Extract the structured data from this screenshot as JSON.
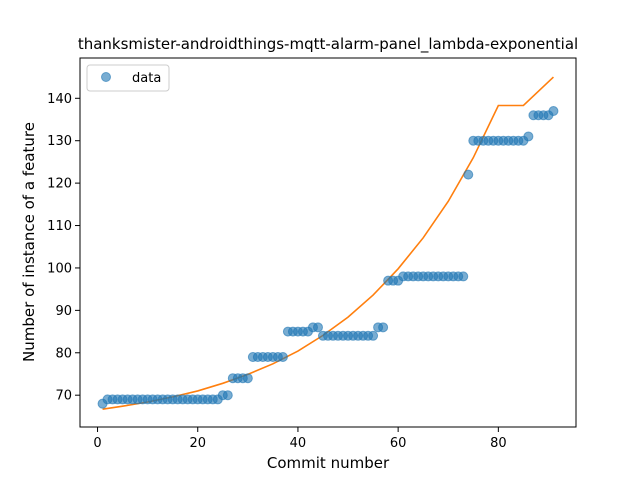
{
  "chart_data": {
    "type": "scatter",
    "title": "thanksmister-androidthings-mqtt-alarm-panel_lambda-exponential",
    "xlabel": "Commit number",
    "ylabel": "Number of instance of a feature",
    "xlim": [
      -3.5,
      95.5
    ],
    "ylim": [
      62.5,
      149.5
    ],
    "xticks": [
      0,
      20,
      40,
      60,
      80
    ],
    "yticks": [
      70,
      80,
      90,
      100,
      110,
      120,
      130,
      140
    ],
    "grid": false,
    "legend": {
      "position": "top-left",
      "entries": [
        "data"
      ]
    },
    "colors": {
      "data": "#1f77b4",
      "fit": "#ff7f0e"
    },
    "series": [
      {
        "name": "data",
        "kind": "scatter",
        "x": [
          1,
          2,
          3,
          4,
          5,
          6,
          7,
          8,
          9,
          10,
          11,
          12,
          13,
          14,
          15,
          16,
          17,
          18,
          19,
          20,
          21,
          22,
          23,
          24,
          25,
          26,
          27,
          28,
          29,
          30,
          31,
          32,
          33,
          34,
          35,
          36,
          37,
          38,
          39,
          40,
          41,
          42,
          43,
          44,
          45,
          46,
          47,
          48,
          49,
          50,
          51,
          52,
          53,
          54,
          55,
          56,
          57,
          58,
          59,
          60,
          61,
          62,
          63,
          64,
          65,
          66,
          67,
          68,
          69,
          70,
          71,
          72,
          73,
          74,
          75,
          76,
          77,
          78,
          79,
          80,
          81,
          82,
          83,
          84,
          85,
          86,
          87,
          88,
          89,
          90,
          91
        ],
        "y": [
          68,
          69,
          69,
          69,
          69,
          69,
          69,
          69,
          69,
          69,
          69,
          69,
          69,
          69,
          69,
          69,
          69,
          69,
          69,
          69,
          69,
          69,
          69,
          69,
          70,
          70,
          74,
          74,
          74,
          74,
          79,
          79,
          79,
          79,
          79,
          79,
          79,
          85,
          85,
          85,
          85,
          85,
          86,
          86,
          84,
          84,
          84,
          84,
          84,
          84,
          84,
          84,
          84,
          84,
          84,
          86,
          86,
          97,
          97,
          97,
          98,
          98,
          98,
          98,
          98,
          98,
          98,
          98,
          98,
          98,
          98,
          98,
          98,
          122,
          130,
          130,
          130,
          130,
          130,
          130,
          130,
          130,
          130,
          130,
          130,
          131,
          136,
          136,
          136,
          136,
          137
        ]
      },
      {
        "kind": "line",
        "x": [
          1,
          5,
          10,
          15,
          20,
          25,
          30,
          35,
          40,
          45,
          50,
          55,
          60,
          65,
          70,
          75,
          80,
          85,
          91
        ],
        "y": [
          66.7,
          67.4,
          68.4,
          69.6,
          71.0,
          72.8,
          74.9,
          77.4,
          80.4,
          84.1,
          88.4,
          93.6,
          99.8,
          107.1,
          115.7,
          126.0,
          138.3,
          138.3,
          145.0
        ]
      }
    ]
  }
}
